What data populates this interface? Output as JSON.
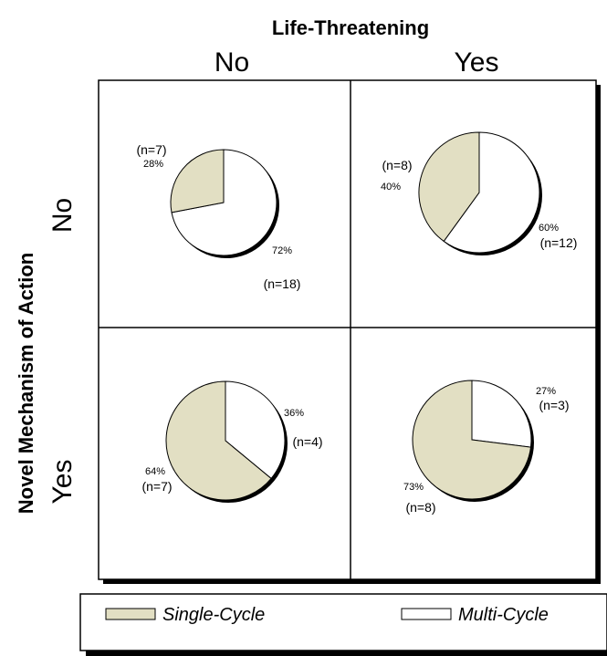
{
  "chart_data": {
    "type": "pie",
    "title": "Life-Threatening",
    "column_labels": [
      "No",
      "Yes"
    ],
    "row_title": "Novel Mechanism of Action",
    "row_labels": [
      "No",
      "Yes"
    ],
    "colors": {
      "single": "#e2dfc3",
      "multi": "#ffffff"
    },
    "legend": [
      {
        "label": "Single-Cycle",
        "color": "#e2dfc3"
      },
      {
        "label": "Multi-Cycle",
        "color": "#ffffff"
      }
    ],
    "legend_position": "bottom",
    "panels": [
      {
        "id": "no-no",
        "single_pct": "28%",
        "single_n": "(n=7)",
        "multi_pct": "72%",
        "multi_n": "(n=18)",
        "single_value": 28,
        "multi_value": 72
      },
      {
        "id": "no-yes",
        "single_pct": "40%",
        "single_n": "(n=8)",
        "multi_pct": "60%",
        "multi_n": "(n=12)",
        "single_value": 40,
        "multi_value": 60
      },
      {
        "id": "yes-no",
        "single_pct": "64%",
        "single_n": "(n=7)",
        "multi_pct": "36%",
        "multi_n": "(n=4)",
        "single_value": 64,
        "multi_value": 36
      },
      {
        "id": "yes-yes",
        "single_pct": "73%",
        "single_n": "(n=8)",
        "multi_pct": "27%",
        "multi_n": "(n=3)",
        "single_value": 73,
        "multi_value": 27
      }
    ]
  }
}
